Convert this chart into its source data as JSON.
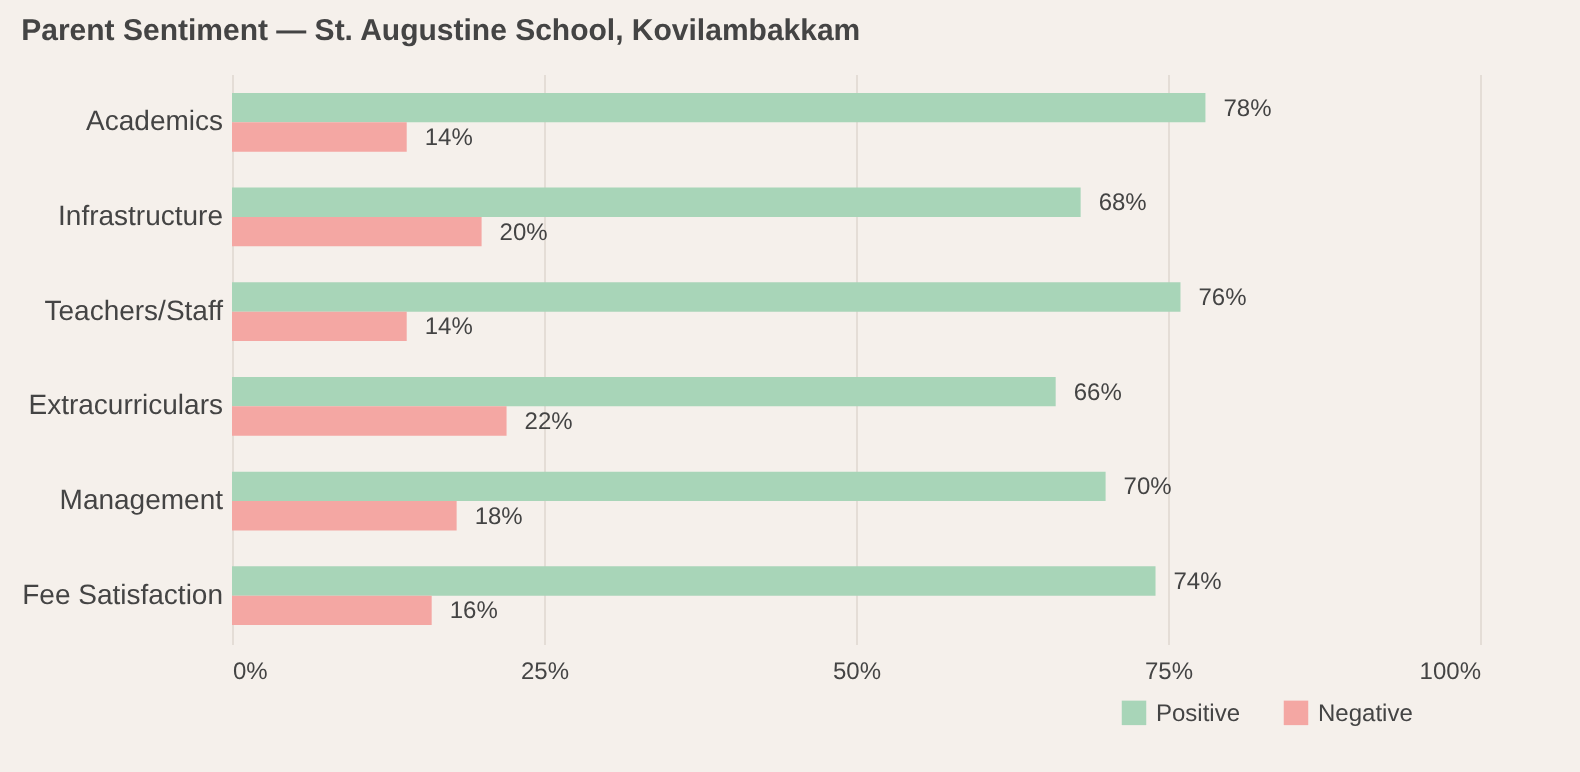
{
  "chart_data": {
    "type": "bar",
    "orientation": "horizontal",
    "title": "Parent Sentiment — St. Augustine School, Kovilambakkam",
    "categories": [
      "Academics",
      "Infrastructure",
      "Teachers/Staff",
      "Extracurriculars",
      "Management",
      "Fee Satisfaction"
    ],
    "series": [
      {
        "name": "Positive",
        "color": "#a8d5b8",
        "values": [
          78,
          68,
          76,
          66,
          70,
          74
        ],
        "value_labels": [
          "78%",
          "68%",
          "76%",
          "66%",
          "70%",
          "74%"
        ]
      },
      {
        "name": "Negative",
        "color": "#f4a7a3",
        "values": [
          14,
          20,
          14,
          22,
          18,
          16
        ],
        "value_labels": [
          "14%",
          "20%",
          "14%",
          "22%",
          "18%",
          "16%"
        ]
      }
    ],
    "xlim": [
      0,
      100
    ],
    "xticks": [
      {
        "value": 0,
        "label": "0%"
      },
      {
        "value": 25,
        "label": "25%"
      },
      {
        "value": 50,
        "label": "50%"
      },
      {
        "value": 75,
        "label": "75%"
      },
      {
        "value": 100,
        "label": "100%"
      }
    ],
    "grid": "x",
    "legend": "bottom right"
  }
}
